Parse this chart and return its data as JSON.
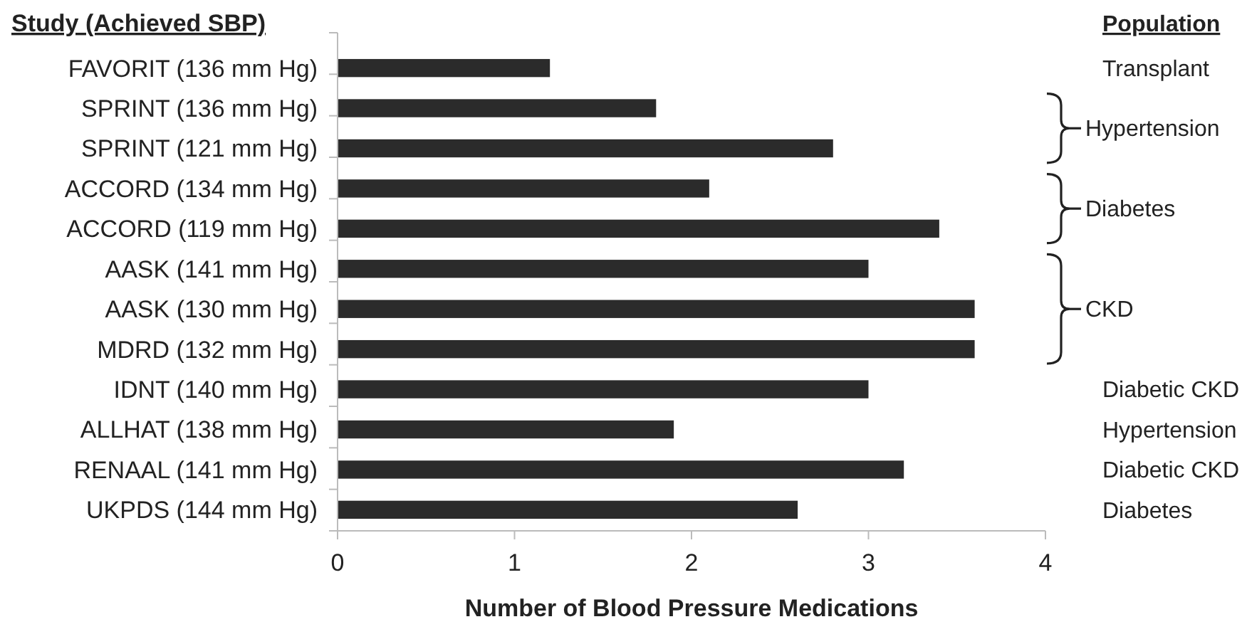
{
  "chart_data": {
    "type": "bar",
    "orientation": "horizontal",
    "ylabel": "Study (Achieved SBP)",
    "xlabel": "Number of Blood Pressure Medications",
    "categories": [
      "FAVORIT (136 mm Hg)",
      "SPRINT (136 mm Hg)",
      "SPRINT (121 mm Hg)",
      "ACCORD (134 mm Hg)",
      "ACCORD (119 mm Hg)",
      "AASK (141 mm Hg)",
      "AASK (130 mm Hg)",
      "MDRD (132 mm Hg)",
      "IDNT (140 mm Hg)",
      "ALLHAT (138 mm Hg)",
      "RENAAL (141 mm Hg)",
      "UKPDS (144 mm Hg)"
    ],
    "values": [
      1.2,
      1.8,
      2.8,
      2.1,
      3.4,
      3.0,
      3.6,
      3.6,
      3.0,
      1.9,
      3.2,
      2.6
    ],
    "color": "#2b2b2b",
    "xlim": [
      0,
      4
    ],
    "xticks": [
      0,
      1,
      2,
      3,
      4
    ],
    "grid": false,
    "annotations": [
      "Population",
      "Transplant",
      "Hypertension",
      "Diabetes",
      "CKD",
      "Diabetic CKD",
      "Hypertension",
      "Diabetic CKD",
      "Diabetes"
    ]
  }
}
